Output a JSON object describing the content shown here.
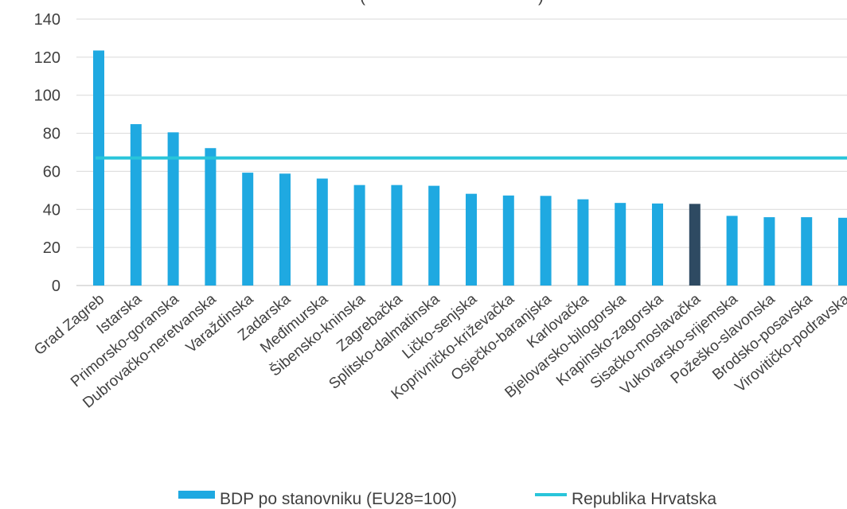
{
  "chart_data": {
    "type": "bar",
    "title_fragment": "(",
    "title_fragment_end": ")",
    "categories": [
      "Grad Zagreb",
      "Istarska",
      "Primorsko-goranska",
      "Dubrovačko-neretvanska",
      "Varaždinska",
      "Zadarska",
      "Međimurska",
      "Šibensko-kninska",
      "Zagrebačka",
      "Splitsko-dalmatinska",
      "Ličko-senjska",
      "Koprivničko-križevačka",
      "Osječko-baranjska",
      "Karlovačka",
      "Bjelovarsko-bilogorska",
      "Krapinsko-zagorska",
      "Sisačko-moslavačka",
      "Vukovarsko-srijemska",
      "Požeško-slavonska",
      "Brodsko-posavska",
      "Virovitičko-podravska"
    ],
    "series": [
      {
        "name": "BDP po stanovniku (EU28=100)",
        "values": [
          123.5,
          84.8,
          80.5,
          72.2,
          59.3,
          58.8,
          56.2,
          52.8,
          52.8,
          52.4,
          48.2,
          47.3,
          47.1,
          45.3,
          43.4,
          43.1,
          42.9,
          36.6,
          35.9,
          35.9,
          35.6
        ],
        "color": "#1FA9E1",
        "highlight_index": 16,
        "highlight_color": "#2E4A62"
      },
      {
        "name": "Republika Hrvatska",
        "type": "line",
        "value": 67,
        "color": "#29C5DA"
      }
    ],
    "ylim": [
      0,
      140
    ],
    "yticks": [
      0,
      20,
      40,
      60,
      80,
      100,
      120,
      140
    ],
    "grid": true,
    "legend_position": "bottom"
  }
}
